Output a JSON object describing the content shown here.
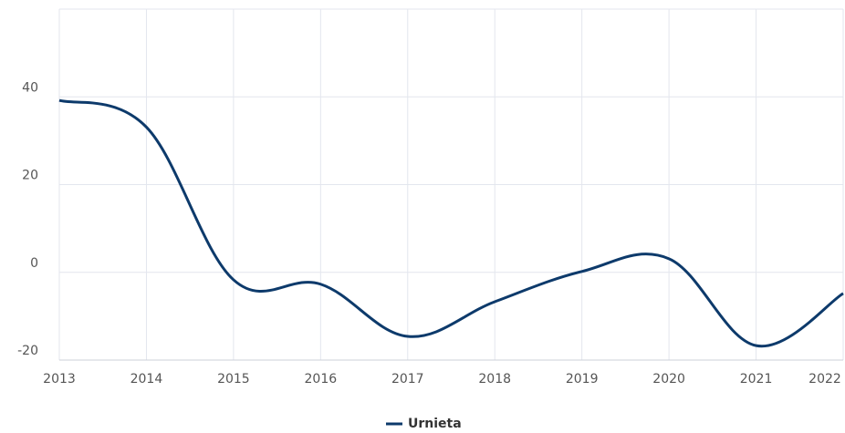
{
  "chart_data": {
    "type": "line",
    "x": [
      2013,
      2014,
      2015,
      2016,
      2017,
      2018,
      2019,
      2020,
      2021,
      2022
    ],
    "series": [
      {
        "name": "Urnieta",
        "color": "#0d3a6b",
        "values": [
          39.2,
          33.1,
          -1.7,
          -2.7,
          -14.6,
          -6.7,
          0.2,
          3.1,
          -16.7,
          -4.8
        ]
      }
    ],
    "xlim": [
      2013,
      2022
    ],
    "xticks": [
      2013,
      2014,
      2015,
      2016,
      2017,
      2018,
      2019,
      2020,
      2021,
      2022
    ],
    "ylim": [
      -20,
      60
    ],
    "yticks": [
      -20,
      0,
      20,
      40
    ],
    "grid": true,
    "legend": "bottom"
  }
}
